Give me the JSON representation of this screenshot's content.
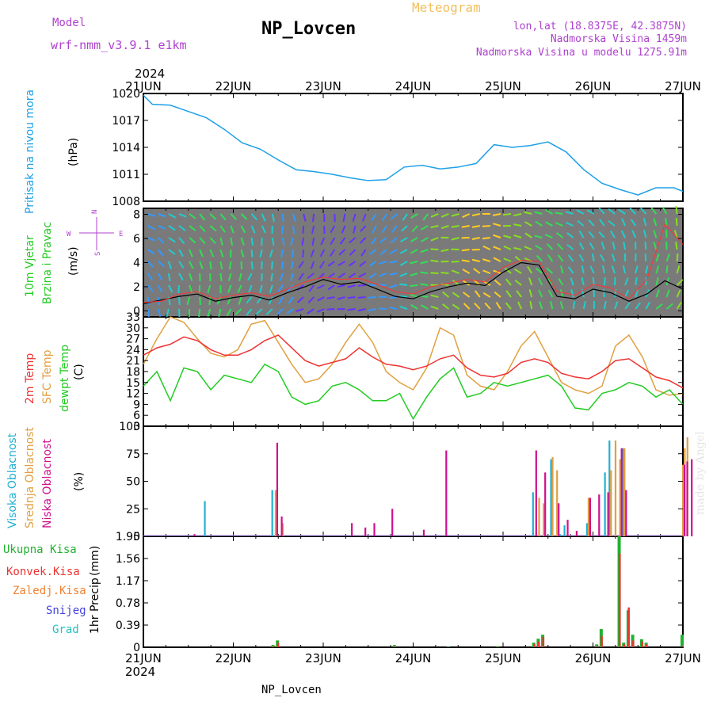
{
  "header": {
    "model_label": "Model",
    "model_value": "wrf-nmm_v3.9.1 e1km",
    "station": "NP_Lovcen",
    "meteogram": "Meteogram",
    "lonlat": "lon,lat (18.8375E, 42.3875N)",
    "elev": "Nadmorska Visina 1459m",
    "elev_model": "Nadmorska Visina u modelu 1275.91m",
    "footer_station": "NP_Lovcen",
    "credit": "made by Angel",
    "year_top": "2024",
    "year_bottom": "2024"
  },
  "colors": {
    "pressure": "#1ea0e6",
    "wind": "#22cc22",
    "temp2m": "#ee3333",
    "sfc": "#e0a040",
    "dewpt": "#22cc22",
    "cloud_high": "#22b0d0",
    "cloud_mid": "#e0a040",
    "cloud_low": "#d0108c",
    "precip_total": "#22b030",
    "precip_conv": "#ee3333",
    "precip_frz": "#f08030",
    "precip_snow": "#4444dd",
    "precip_grad": "#22c0c0",
    "header_purple": "#b040d0",
    "meteogram_orange": "#f0c060"
  },
  "x_ticks": [
    "21JUN",
    "22JUN",
    "23JUN",
    "24JUN",
    "25JUN",
    "26JUN",
    "27JUN"
  ],
  "chart_data": [
    {
      "type": "line",
      "name": "pressure",
      "ylabel_1": "Pritisak na nivou mora",
      "unit": "(hPa)",
      "ylim": [
        1008,
        1020
      ],
      "y_ticks": [
        "1020",
        "1017",
        "1014",
        "1011",
        "1008"
      ],
      "x_days": [
        0,
        0.1,
        0.3,
        0.5,
        0.7,
        0.9,
        1.1,
        1.3,
        1.5,
        1.7,
        1.9,
        2.1,
        2.3,
        2.5,
        2.7,
        2.9,
        3.1,
        3.3,
        3.5,
        3.7,
        3.9,
        4.1,
        4.3,
        4.5,
        4.7,
        4.9,
        5.1,
        5.3,
        5.5,
        5.7,
        5.9,
        6.0
      ],
      "values": [
        1019.8,
        1018.8,
        1018.7,
        1018.0,
        1017.3,
        1016.0,
        1014.5,
        1013.8,
        1012.6,
        1011.5,
        1011.3,
        1011.0,
        1010.6,
        1010.3,
        1010.4,
        1011.8,
        1012.0,
        1011.6,
        1011.8,
        1012.2,
        1014.3,
        1014.0,
        1014.2,
        1014.6,
        1013.5,
        1011.5,
        1010.0,
        1009.3,
        1008.7,
        1009.5,
        1009.5,
        1009.1
      ]
    },
    {
      "type": "line",
      "name": "wind",
      "ylabel_1": "10m Vjetar",
      "ylabel_2": "Brzina i Pravac",
      "unit": "(m/s)",
      "ylim": [
        -0.5,
        8.5
      ],
      "y_ticks": [
        "8",
        "6",
        "4",
        "2",
        "0"
      ],
      "x_days": [
        0,
        0.2,
        0.4,
        0.6,
        0.8,
        1.0,
        1.2,
        1.4,
        1.6,
        1.8,
        2.0,
        2.2,
        2.4,
        2.6,
        2.8,
        3.0,
        3.2,
        3.4,
        3.6,
        3.8,
        4.0,
        4.2,
        4.4,
        4.6,
        4.8,
        5.0,
        5.2,
        5.4,
        5.6,
        5.8,
        6.0
      ],
      "values": [
        0.6,
        0.9,
        1.2,
        1.4,
        0.8,
        1.1,
        1.3,
        0.9,
        1.5,
        2.0,
        2.6,
        2.2,
        2.4,
        1.8,
        1.2,
        1.0,
        1.6,
        2.0,
        2.3,
        2.1,
        3.2,
        4.0,
        3.8,
        1.2,
        1.0,
        1.8,
        1.5,
        0.8,
        1.4,
        2.5,
        1.8
      ],
      "gust_values": [
        0.7,
        0.8,
        1.4,
        1.6,
        1.0,
        1.3,
        1.5,
        1.2,
        1.8,
        2.4,
        2.8,
        2.6,
        2.7,
        2.2,
        1.6,
        1.4,
        2.0,
        2.3,
        2.6,
        2.4,
        3.6,
        4.2,
        4.1,
        1.6,
        1.3,
        2.2,
        1.9,
        1.0,
        2.6,
        7.2,
        5.5
      ],
      "direction_legend_top": "N",
      "direction_legend_left": "W",
      "direction_legend_right": "E",
      "direction_legend_bottom": "S"
    },
    {
      "type": "line",
      "name": "temperature",
      "ylabel_1": "2m Temp",
      "ylabel_2": "SFC Temp",
      "ylabel_3": "dewpt Temp",
      "unit": "(C)",
      "ylim": [
        3,
        33
      ],
      "y_ticks": [
        "33",
        "30",
        "27",
        "24",
        "21",
        "18",
        "15",
        "12",
        "9",
        "6",
        "3"
      ],
      "x_days": [
        0,
        0.15,
        0.3,
        0.45,
        0.6,
        0.75,
        0.9,
        1.05,
        1.2,
        1.35,
        1.5,
        1.65,
        1.8,
        1.95,
        2.1,
        2.25,
        2.4,
        2.55,
        2.7,
        2.85,
        3.0,
        3.15,
        3.3,
        3.45,
        3.6,
        3.75,
        3.9,
        4.05,
        4.2,
        4.35,
        4.5,
        4.65,
        4.8,
        4.95,
        5.1,
        5.25,
        5.4,
        5.55,
        5.7,
        5.85,
        6.0
      ],
      "t2m": [
        22.5,
        24.5,
        25.5,
        27.5,
        26.5,
        24.0,
        22.5,
        22.5,
        24.0,
        26.5,
        28.0,
        24.5,
        21.0,
        19.5,
        20.5,
        21.5,
        24.5,
        22.0,
        20.0,
        19.5,
        18.5,
        19.5,
        21.5,
        22.5,
        19.0,
        17.0,
        16.5,
        17.5,
        20.5,
        21.5,
        20.5,
        17.5,
        16.5,
        16.0,
        18.0,
        21.0,
        21.5,
        19.0,
        16.5,
        15.5,
        13.5
      ],
      "tsfc": [
        20.0,
        27.0,
        33.0,
        31.5,
        27.0,
        23.0,
        22.0,
        24.0,
        31.0,
        32.0,
        26.0,
        20.0,
        15.0,
        16.0,
        20.0,
        26.0,
        31.0,
        26.0,
        18.0,
        15.0,
        13.0,
        19.0,
        30.0,
        28.0,
        17.0,
        14.0,
        13.0,
        18.0,
        25.0,
        29.0,
        22.0,
        15.0,
        13.0,
        12.0,
        14.0,
        25.0,
        28.0,
        22.0,
        13.0,
        11.5,
        12.0
      ],
      "td": [
        14.0,
        18.0,
        10.0,
        19.0,
        18.0,
        13.0,
        17.0,
        16.0,
        15.0,
        20.0,
        18.0,
        11.0,
        9.0,
        10.0,
        14.0,
        15.0,
        13.0,
        10.0,
        10.0,
        12.0,
        5.0,
        11.0,
        16.0,
        19.0,
        11.0,
        12.0,
        15.0,
        14.0,
        15.0,
        16.0,
        17.0,
        14.0,
        8.0,
        7.5,
        12.0,
        13.0,
        15.0,
        14.0,
        11.0,
        13.0,
        9.0
      ]
    },
    {
      "type": "bar",
      "name": "clouds",
      "ylabel_1": "Visoka Oblacnost",
      "ylabel_2": "Srednja Oblacnost",
      "ylabel_3": "Niska Oblacnost",
      "unit": "(%)",
      "ylim": [
        0,
        100
      ],
      "y_ticks": [
        "100",
        "75",
        "50",
        "25",
        "0"
      ],
      "series": [
        {
          "name": "high",
          "x_days": [
            0.7,
            1.45,
            1.5,
            4.35,
            4.55,
            4.65,
            4.7,
            4.95,
            5.15,
            5.2,
            5.35
          ],
          "values": [
            32,
            42,
            12,
            40,
            70,
            2,
            10,
            12,
            58,
            87,
            80
          ]
        },
        {
          "name": "mid",
          "x_days": [
            1.47,
            1.55,
            4.4,
            4.45,
            4.55,
            4.6,
            4.95,
            5.2,
            5.25,
            5.3,
            5.35,
            6.0,
            6.02,
            6.05
          ],
          "values": [
            42,
            12,
            35,
            30,
            72,
            60,
            35,
            60,
            87,
            70,
            80,
            65,
            80,
            90
          ]
        },
        {
          "name": "low",
          "x_days": [
            0.55,
            1.47,
            1.52,
            2.3,
            2.45,
            2.55,
            2.75,
            3.1,
            3.35,
            4.35,
            4.45,
            4.6,
            4.7,
            4.8,
            4.95,
            5.05,
            5.15,
            5.3,
            5.35,
            6.0,
            6.03,
            6.08
          ],
          "values": [
            2,
            85,
            18,
            12,
            8,
            12,
            25,
            6,
            78,
            78,
            58,
            30,
            15,
            5,
            35,
            38,
            40,
            80,
            42,
            65,
            68,
            70
          ]
        }
      ]
    },
    {
      "type": "bar",
      "name": "precip",
      "ylabel_1": "1hr Precip",
      "unit": "(mm)",
      "ylim": [
        0,
        1.95
      ],
      "y_ticks": [
        "1.95",
        "1.56",
        "1.17",
        "0.78",
        "0.39",
        "0"
      ],
      "legend": [
        "Ukupna Kisa",
        "Konvek.Kisa",
        "Zaledj.Kisa",
        "Snijeg",
        "Grad"
      ],
      "x_days": [
        1.45,
        1.5,
        2.8,
        3.4,
        3.95,
        4.35,
        4.4,
        4.45,
        5.05,
        5.1,
        5.3,
        5.35,
        5.4,
        5.45,
        5.55,
        5.6,
        6.0
      ],
      "total": [
        0.04,
        0.12,
        0.04,
        0.01,
        0.02,
        0.08,
        0.15,
        0.22,
        0.05,
        0.32,
        1.95,
        0.08,
        0.65,
        0.22,
        0.14,
        0.08,
        0.22
      ],
      "convective": [
        0.02,
        0.08,
        0.01,
        0.0,
        0.01,
        0.06,
        0.1,
        0.18,
        0.02,
        0.2,
        1.65,
        0.05,
        0.7,
        0.12,
        0.1,
        0.05,
        0.02
      ]
    }
  ]
}
